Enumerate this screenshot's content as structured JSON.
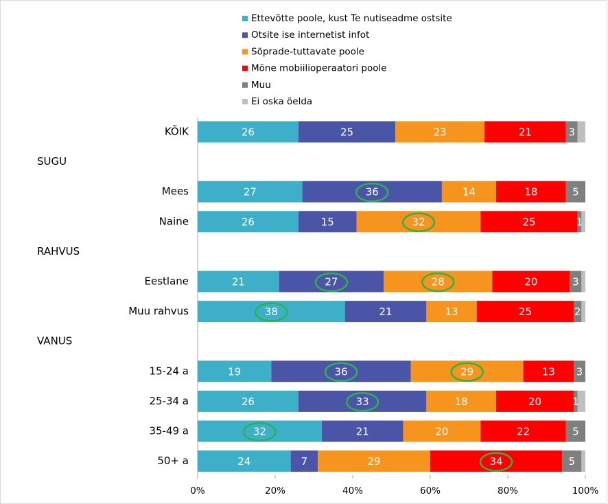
{
  "chart_data": {
    "type": "stacked_bar",
    "orientation": "horizontal",
    "categories": [
      "KÕIK",
      "SUGU",
      "Mees",
      "Naine",
      "RAHVUS",
      "Eestlane",
      "Muu rahvus",
      "VANUS",
      "15-24 a",
      "25-34 a",
      "35-49 a",
      "50+ a"
    ],
    "series": [
      {
        "name": "Ettevõtte poole, kust Te nutiseadme ostsite",
        "color": "#3eafc9",
        "data_labels": true,
        "values": [
          26,
          null,
          27,
          26,
          null,
          21,
          38,
          null,
          19,
          26,
          32,
          24
        ]
      },
      {
        "name": "Otsite ise internetist infot",
        "color": "#4a55a8",
        "data_labels": true,
        "values": [
          25,
          null,
          36,
          15,
          null,
          27,
          21,
          null,
          36,
          33,
          21,
          7
        ]
      },
      {
        "name": "Sõprade-tuttavate poole",
        "color": "#f7941d",
        "data_labels": true,
        "values": [
          23,
          null,
          14,
          32,
          null,
          28,
          13,
          null,
          29,
          18,
          20,
          29
        ]
      },
      {
        "name": "Mõne mobiilioperaatori poole",
        "color": "#ff0000",
        "data_labels": true,
        "values": [
          21,
          null,
          18,
          25,
          null,
          20,
          25,
          null,
          13,
          20,
          22,
          34
        ]
      },
      {
        "name": "Muu",
        "color": "#7f7f7f",
        "data_labels": true,
        "values": [
          3,
          null,
          5,
          1,
          null,
          3,
          2,
          null,
          3,
          1,
          5,
          5
        ]
      },
      {
        "name": "Ei oska öelda",
        "color": "#bfbfbf",
        "data_labels": false,
        "values": [
          2,
          null,
          0,
          1,
          null,
          1,
          1,
          null,
          0,
          2,
          0,
          1
        ]
      }
    ],
    "highlights": [
      {
        "series": 1,
        "index": 2
      },
      {
        "series": 2,
        "index": 3
      },
      {
        "series": 1,
        "index": 5
      },
      {
        "series": 2,
        "index": 5
      },
      {
        "series": 0,
        "index": 6
      },
      {
        "series": 1,
        "index": 8
      },
      {
        "series": 2,
        "index": 8
      },
      {
        "series": 1,
        "index": 9
      },
      {
        "series": 0,
        "index": 10
      },
      {
        "series": 3,
        "index": 11
      }
    ],
    "highlight_color": "#2db34a",
    "xlim": [
      0,
      100
    ],
    "xticks": [
      {
        "value": 0,
        "label": "0%"
      },
      {
        "value": 20,
        "label": "20%"
      },
      {
        "value": 40,
        "label": "40%"
      },
      {
        "value": 60,
        "label": "60%"
      },
      {
        "value": 80,
        "label": "80%"
      },
      {
        "value": 100,
        "label": "100%"
      }
    ],
    "legend": "top"
  }
}
